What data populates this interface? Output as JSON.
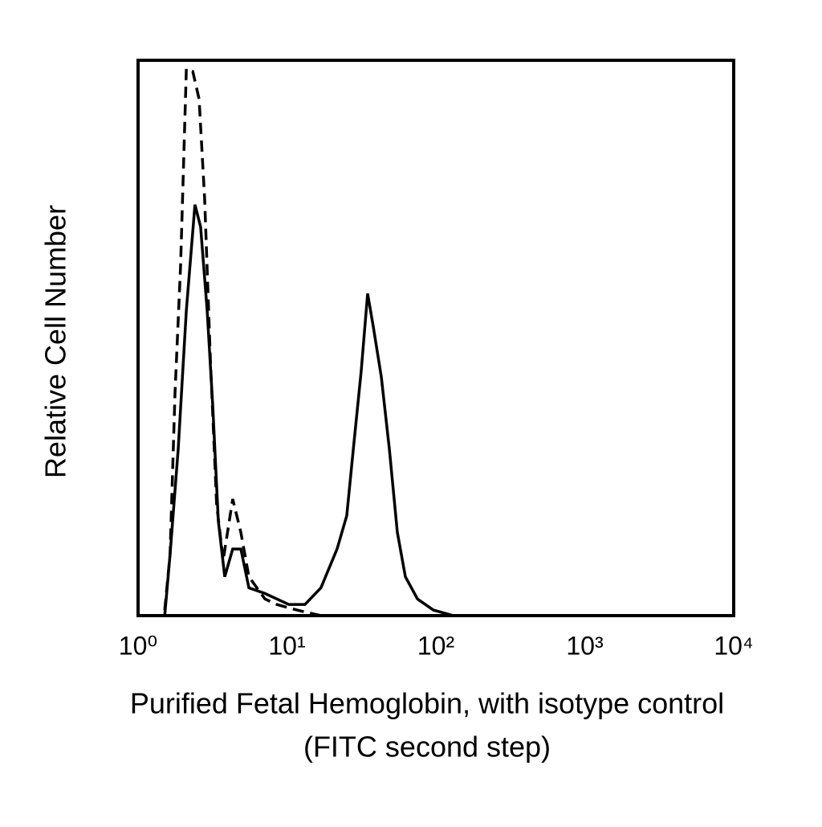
{
  "chart_data": {
    "type": "histogram-line",
    "xlabel": [
      "Purified Fetal Hemoglobin, with isotype control",
      "(FITC second step)"
    ],
    "ylabel": "Relative Cell Number",
    "xscale": "log",
    "xlim": [
      1,
      10000
    ],
    "ylim": [
      0,
      100
    ],
    "xticks": [
      {
        "value": 1,
        "label": "10⁰"
      },
      {
        "value": 10,
        "label": "10¹"
      },
      {
        "value": 100,
        "label": "10²"
      },
      {
        "value": 1000,
        "label": "10³"
      },
      {
        "value": 10000,
        "label": "10⁴"
      }
    ],
    "series": [
      {
        "color": "#000000",
        "dash": false,
        "x": [
          1.51,
          1.64,
          1.86,
          2.11,
          2.41,
          2.63,
          2.91,
          3.17,
          3.46,
          3.82,
          4.32,
          4.9,
          5.55,
          7.11,
          10.3,
          13.2,
          16.9,
          21.7,
          25.2,
          27.9,
          31.5,
          34.8,
          38.0,
          43.0,
          48.7,
          55.1,
          62.4,
          75.2,
          96.3,
          131
        ],
        "values": [
          0,
          11,
          30,
          55,
          74,
          70,
          55,
          38,
          17,
          7,
          12,
          12,
          5,
          4,
          2,
          2,
          5,
          12,
          18,
          30,
          44,
          58,
          52,
          43,
          30,
          15,
          7,
          3,
          1,
          0
        ]
      },
      {
        "color": "#000000",
        "dash": true,
        "x": [
          1.51,
          1.64,
          1.77,
          1.93,
          2.11,
          2.33,
          2.57,
          2.8,
          3.06,
          3.37,
          3.73,
          4.32,
          4.9,
          5.55,
          7.11,
          8.57,
          11.7,
          16.9
        ],
        "values": [
          1,
          11,
          40,
          63,
          98.5,
          98,
          93,
          75,
          46,
          20,
          10,
          21,
          15,
          7,
          3,
          2,
          1,
          0
        ]
      }
    ]
  }
}
